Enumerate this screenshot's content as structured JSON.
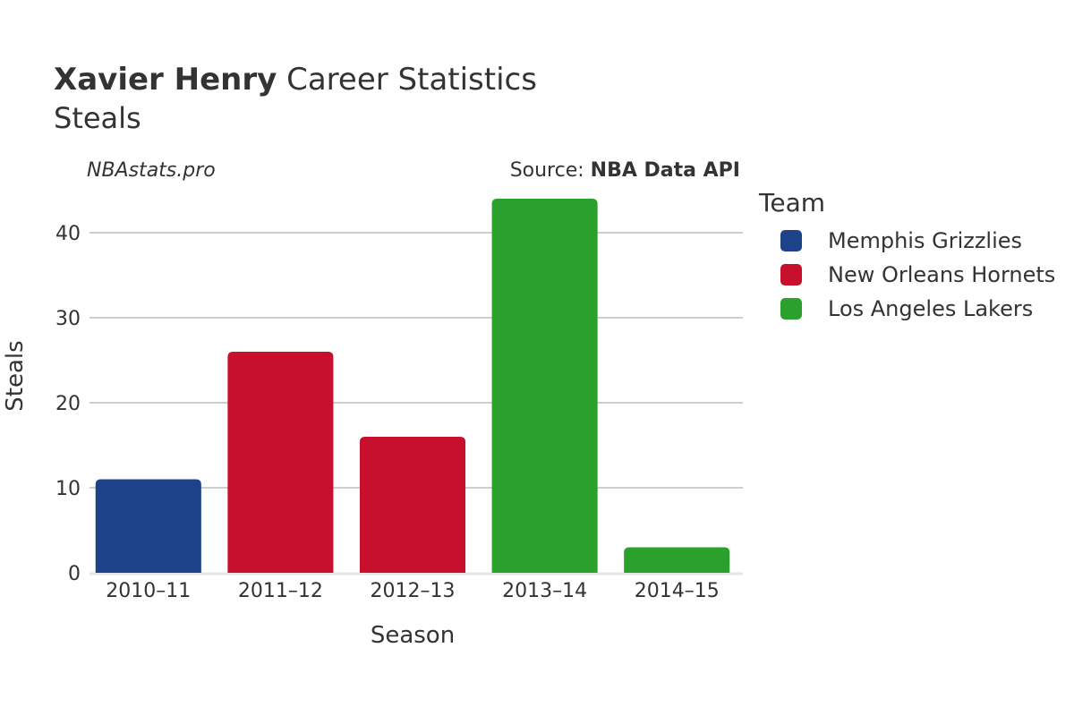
{
  "header": {
    "player": "Xavier Henry",
    "title_rest": " Career Statistics",
    "subtitle": "Steals"
  },
  "credits": {
    "site": "NBAstats.pro",
    "source_prefix": "Source: ",
    "source_name": "NBA Data API"
  },
  "legend": {
    "title": "Team",
    "items": [
      {
        "label": "Memphis Grizzlies",
        "color": "#1d428a"
      },
      {
        "label": "New Orleans Hornets",
        "color": "#c8102e"
      },
      {
        "label": "Los Angeles Lakers",
        "color": "#2ca02c"
      }
    ]
  },
  "chart_data": {
    "type": "bar",
    "title": "Xavier Henry Career Statistics",
    "subtitle": "Steals",
    "xlabel": "Season",
    "ylabel": "Steals",
    "categories": [
      "2010–11",
      "2011–12",
      "2012–13",
      "2013–14",
      "2014–15"
    ],
    "values": [
      11,
      26,
      16,
      44,
      3
    ],
    "teams": [
      "Memphis Grizzlies",
      "New Orleans Hornets",
      "New Orleans Hornets",
      "Los Angeles Lakers",
      "Los Angeles Lakers"
    ],
    "colors": [
      "#1d428a",
      "#c8102e",
      "#c8102e",
      "#2ca02c",
      "#2ca02c"
    ],
    "ylim": [
      0,
      46
    ],
    "yticks": [
      0,
      10,
      20,
      30,
      40
    ],
    "grid": true,
    "legend_position": "right"
  }
}
